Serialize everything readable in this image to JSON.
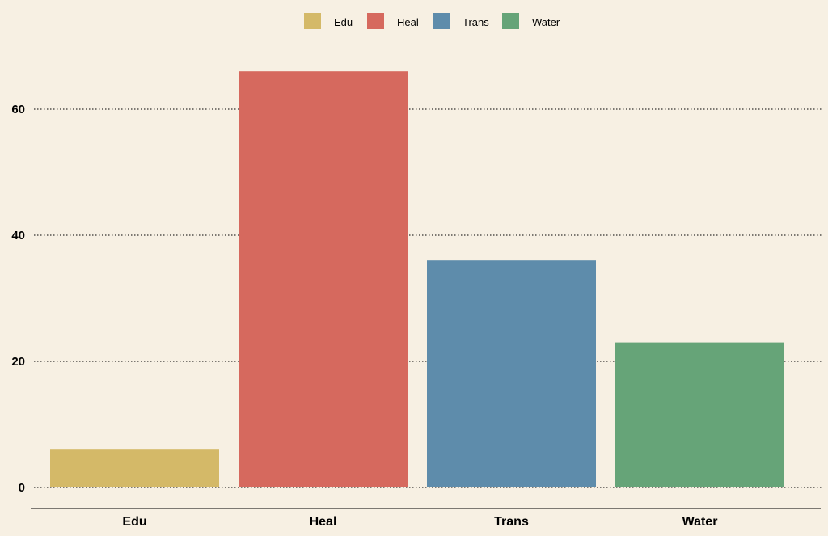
{
  "chart_data": {
    "type": "bar",
    "title": "",
    "xlabel": "",
    "ylabel": "",
    "categories": [
      "Edu",
      "Heal",
      "Trans",
      "Water"
    ],
    "values": [
      6,
      66,
      36,
      23
    ],
    "colors": [
      "#d4b968",
      "#d6695e",
      "#5e8cab",
      "#66a478"
    ],
    "ylim": [
      0,
      70
    ],
    "yticks": [
      0,
      20,
      40,
      60
    ],
    "grid": "horizontal dotted",
    "legend": {
      "placement": "top-center",
      "entries": [
        "Edu",
        "Heal",
        "Trans",
        "Water"
      ]
    },
    "background": "#f7f0e3"
  }
}
